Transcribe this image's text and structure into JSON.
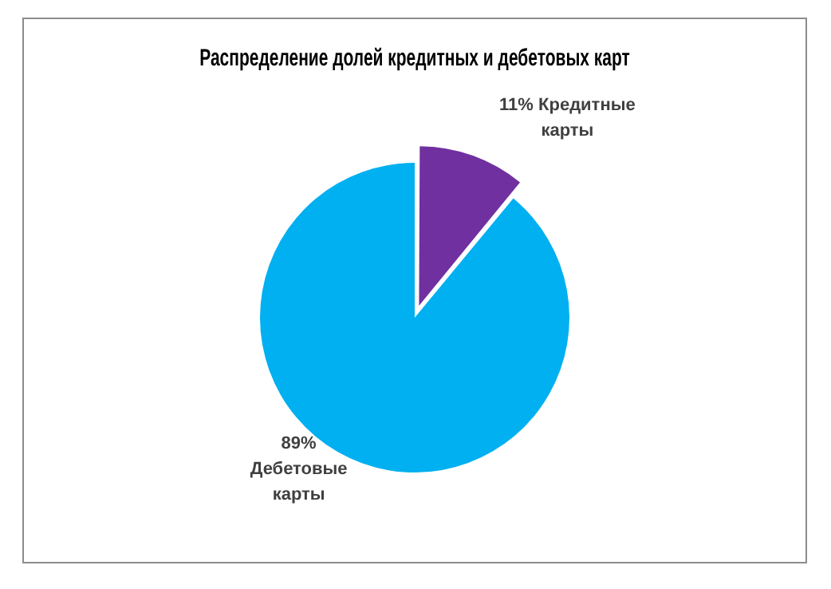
{
  "chart_data": {
    "type": "pie",
    "title": "Распределение долей кредитных и дебетовых карт",
    "categories": [
      "Кредитные карты",
      "Дебетовые карты"
    ],
    "values": [
      11,
      89
    ],
    "colors": [
      "#7030a0",
      "#00b0f0"
    ],
    "value_labels": [
      "11%",
      "89%"
    ],
    "legend": false
  }
}
